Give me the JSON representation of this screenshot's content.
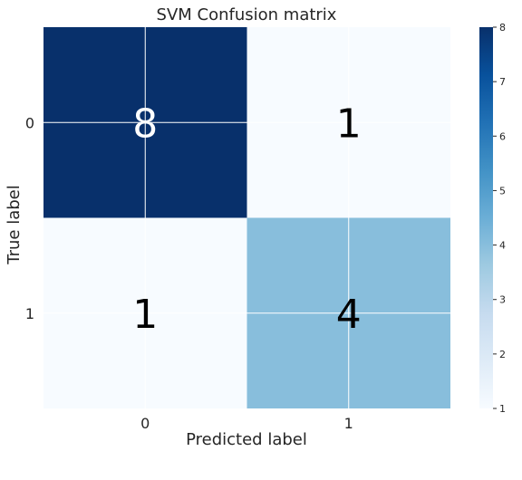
{
  "chart_data": {
    "type": "heatmap",
    "title": "SVM Confusion matrix",
    "xlabel": "Predicted label",
    "ylabel": "True label",
    "x_categories": [
      "0",
      "1"
    ],
    "y_categories": [
      "0",
      "1"
    ],
    "values": [
      [
        8,
        1
      ],
      [
        1,
        4
      ]
    ],
    "colormap": "Blues",
    "colorbar": {
      "min": 1,
      "max": 8,
      "ticks": [
        "1",
        "2",
        "3",
        "4",
        "5",
        "6",
        "7",
        "8"
      ]
    },
    "grid": true
  }
}
